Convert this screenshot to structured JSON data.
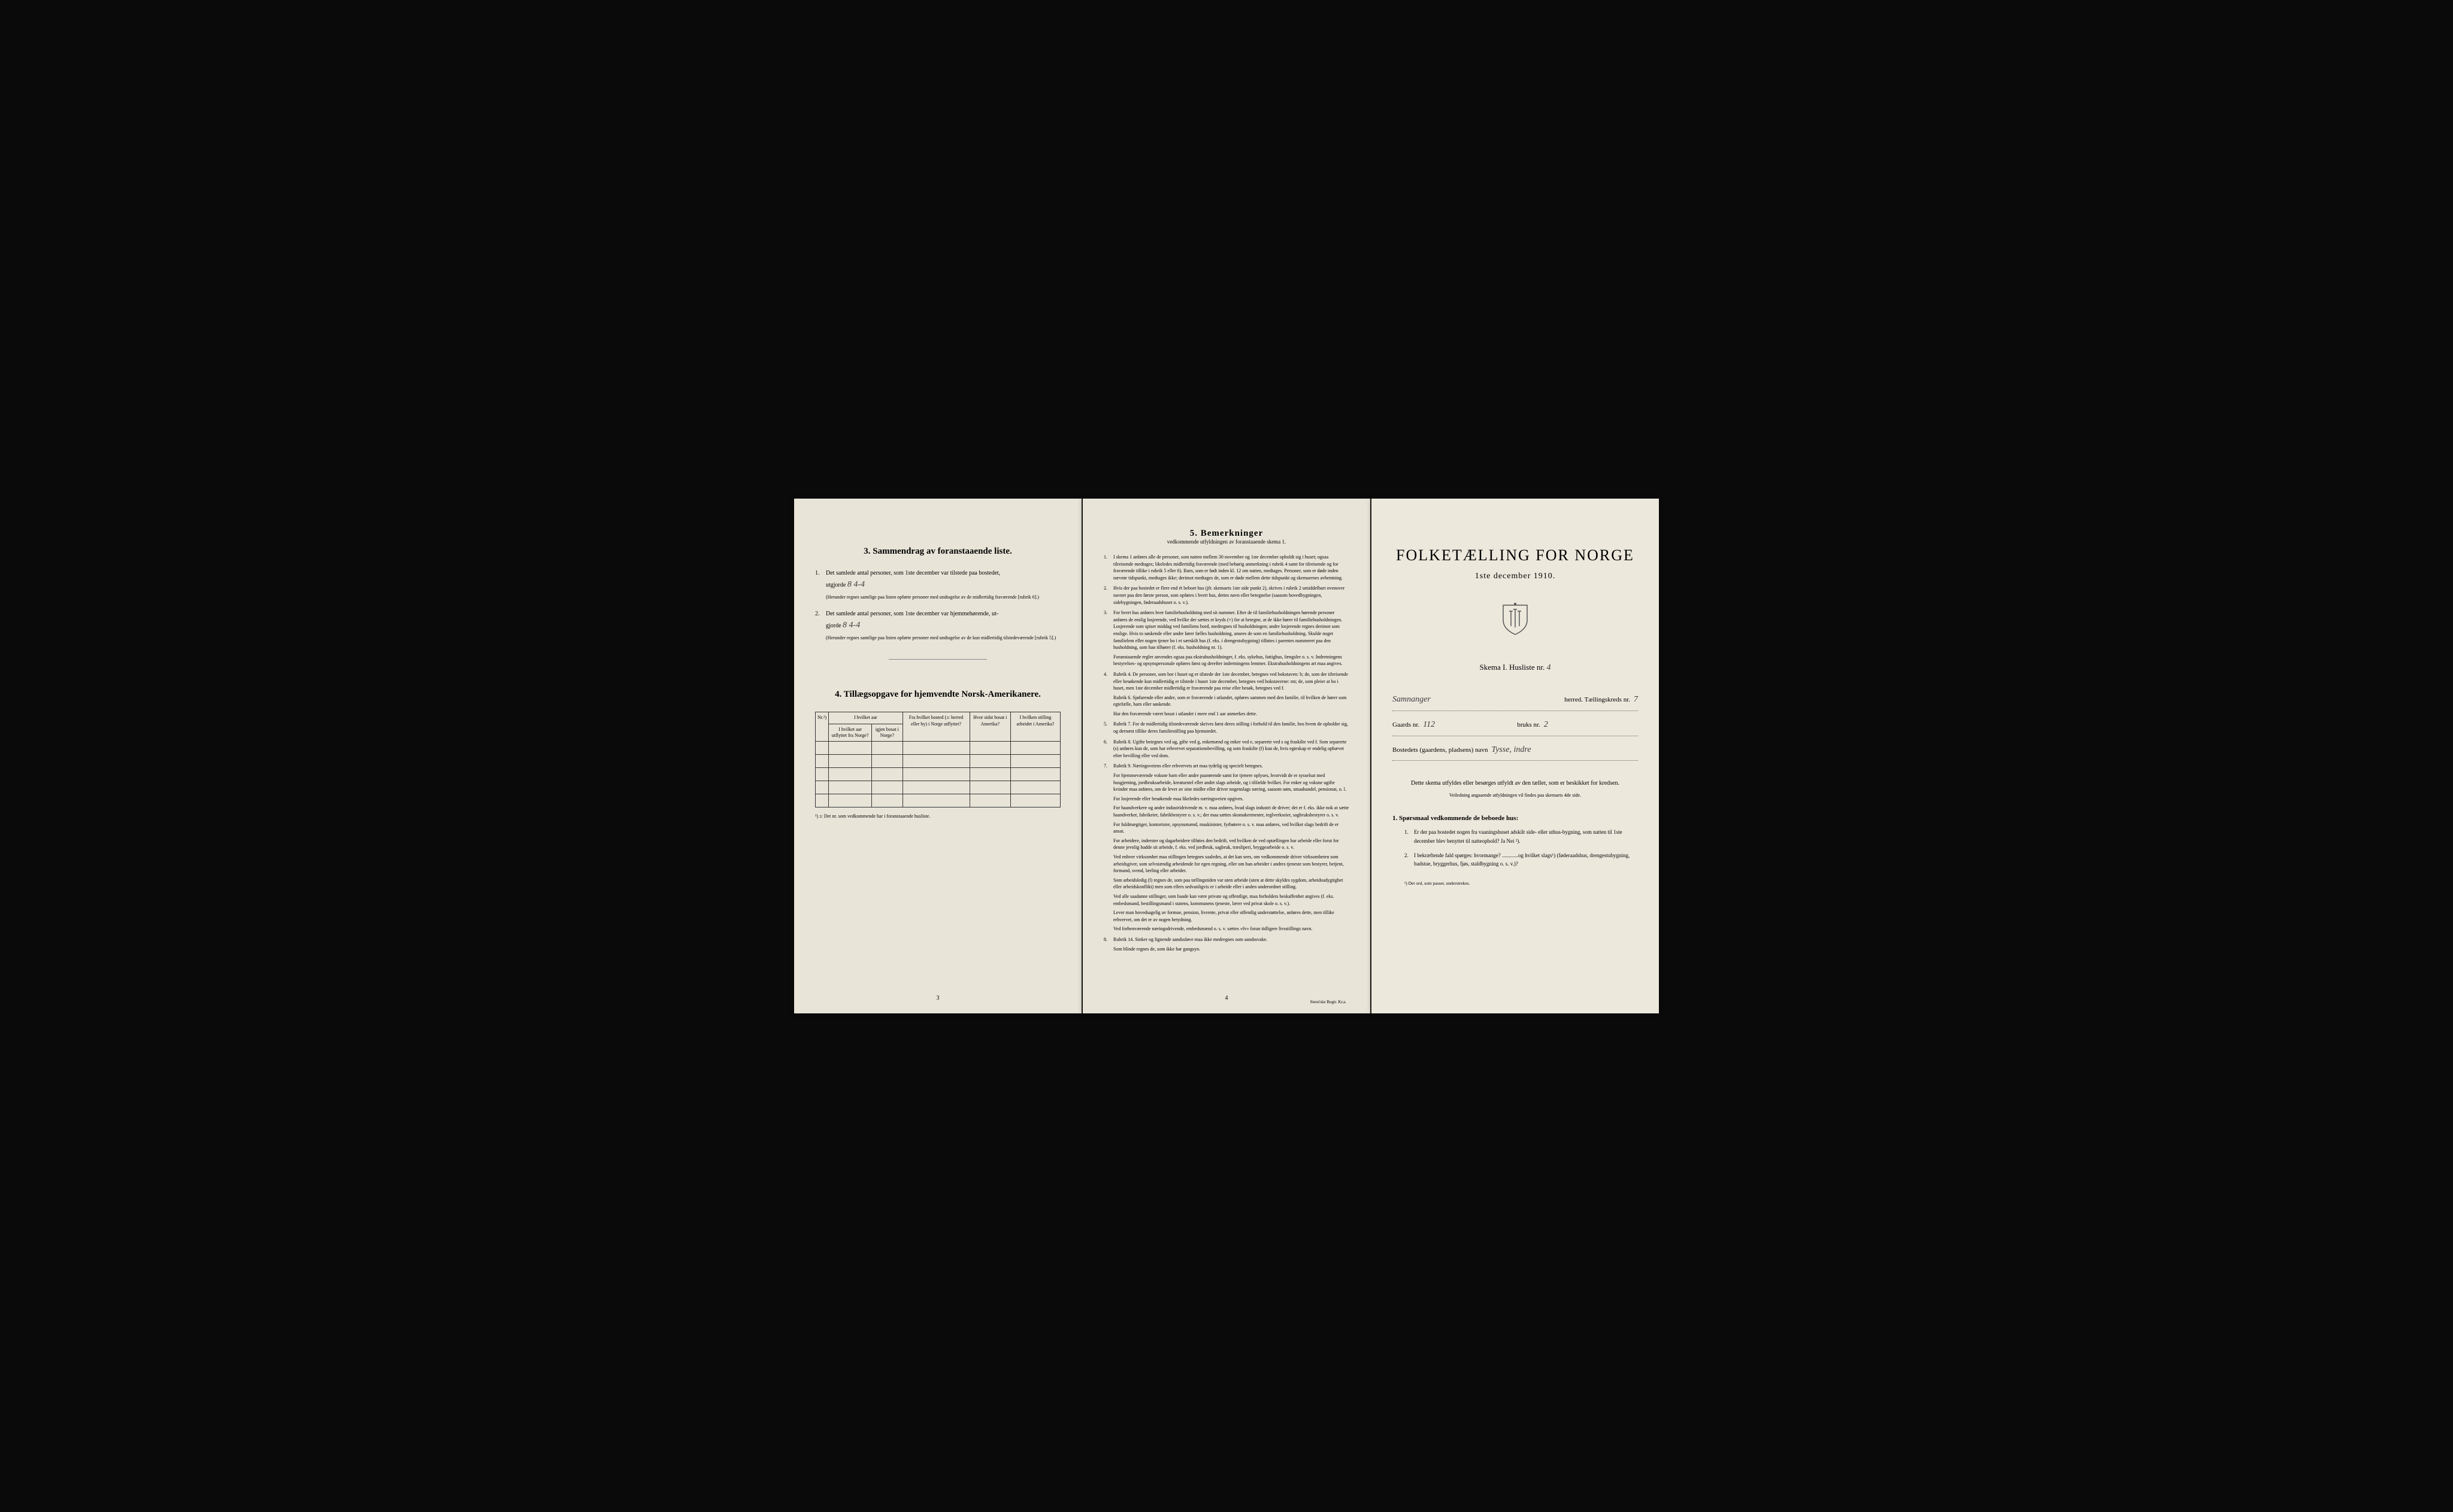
{
  "colors": {
    "page_bg": "#e8e4d8",
    "page_bg_right": "#ece8dc",
    "text": "#1a1a1a",
    "outer_bg": "#0a0a0a",
    "handwriting": "#3a3a3a"
  },
  "page1": {
    "section3_title": "3.  Sammendrag av foranstaaende liste.",
    "item1_pre": "Det samlede antal personer, som 1ste december var tilstede paa bostedet,",
    "item1_word": "utgjorde",
    "item1_val": "8    4-4",
    "item1_note": "(Herunder regnes samtlige paa listen opførte personer med undtagelse av de midlertidig fraværende [rubrik 6].)",
    "item2_pre": "Det samlede antal personer, som 1ste december var hjemmehørende, ut-",
    "item2_word": "gjorde",
    "item2_val": "8    4-4",
    "item2_note": "(Herunder regnes samtlige paa listen opførte personer med undtagelse av de kun midlertidig tilstedeværende [rubrik 5].)",
    "section4_title": "4.  Tillægsopgave for hjemvendte Norsk-Amerikanere.",
    "table_headers": [
      "Nr.¹)",
      "I hvilket aar utflyttet fra Norge?",
      "igjen bosat i Norge?",
      "Fra hvilket bosted (ɔ: herred eller by) i Norge utflyttet?",
      "Hvor sidst bosat i Amerika?",
      "I hvilken stilling arbeidet i Amerika?"
    ],
    "footnote": "¹) ɔ: Det nr. som vedkommende har i foranstaaende husliste.",
    "page_num": "3"
  },
  "page2": {
    "title": "5.  Bemerkninger",
    "subtitle": "vedkommende utfyldningen av foranstaaende skema 1.",
    "items": [
      "I skema 1 anføres alle de personer, som natten mellem 30 november og 1ste december opholdt sig i huset; ogsaa tilreisende medtages; likeledes midlertidig fraværende (med behørig anmerkning i rubrik 4 samt for tilreisende og for fraværende tillike i rubrik 5 eller 6). Barn, som er født inden kl. 12 om natten, medtages. Personer, som er døde inden nævnte tidspunkt, medtages ikke; derimot medtages de, som er døde mellem dette tidspunkt og skemaernes avhentning.",
      "Hvis der paa bostedet er flere end ét beboet hus (jfr. skemaets 1ste side punkt 2), skrives i rubrik 2 umiddelbart ovenover navnet paa den første person, som opføres i hvert hus, dettes navn eller betegnelse (saasom hovedbygningen, sidebygningen, føderaadshuset o. s. v.).",
      "For hvert hus anføres hver familiehusholdning med sit nummer. Efter de til familiehusholdningen hørende personer anføres de enslig losjerende, ved hvilke der sættes et kryds (×) for at betegne, at de ikke hører til familiehusholdningen. Losjerende som spiser middag ved familiens bord, medregnes til husholdningen; andre losjerende regnes derimot som enslige. Hvis to søskende eller andre fører fælles husholdning, ansees de som en familiehusholdning. Skulde noget familielem eller nogen tjener bo i et særskilt hus (f. eks. i drengestubygning) tilføies i parentes nummeret paa den husholdning, som han tilhører (f. eks. husholdning nr. 1).|    Foranstaaende regler anvendes ogsaa paa ekstrahusholdninger, f. eks. sykehus, fattighus, fængsler o. s. v. Indretningens bestyrelses- og opsynspersonale opføres først og derefter indretningens lemmer. Ekstrahusholdningens art maa angives.",
      "Rubrik 4. De personer, som bor i huset og er tilstede der 1ste december, betegnes ved bokstaven: b; de, som der tilreisende eller besøkende kun midlertidig er tilstede i huset 1ste december, betegnes ved bokstaverne: mt; de, som pleier at bo i huset, men 1ste december midlertidig er fraværende paa reise eller besøk, betegnes ved f.|    Rubrik 6. Sjøfarende eller andre, som er fraværende i utlandet, opføres sammen med den familie, til hvilken de hører som egtefælle, barn eller søskende.|    Har den fraværende været bosat i utlandet i mere end 1 aar anmerkes dette.",
      "Rubrik 7. For de midlertidig tilstedeværende skrives først deres stilling i forhold til den familie, hos hvem de opholder sig, og dernæst tillike deres familiestilling paa hjemstedet.",
      "Rubrik 8. Ugifte betegnes ved ug, gifte ved g, enkemænd og enker ved e, separerte ved s og fraskilte ved f. Som separerte (s) anføres kun de, som har erhvervet separationsbevilling, og som fraskilte (f) kun de, hvis egteskap er endelig ophævet efter bevilling eller ved dom.",
      "Rubrik 9. Næringsveiens eller erhvervets art maa tydelig og specielt betegnes.|    For hjemmeværende voksne barn eller andre paarørende samt for tjenere oplyses, hvorvidt de er sysselsat med husgjerning, jordbruksarbeide, kreaturstel eller andet slags arbeide, og i tilfælde hvilket. For enker og voksne ugifte kvinder maa anføres, om de lever av sine midler eller driver nogenslags næring, saasom søm, smaahandel, pensionat, o. l.|    For losjerende eller besøkende maa likeledes næringsveien opgives.|    For haandverkere og andre industridrivende m. v. maa anføres, hvad slags industri de driver; det er f. eks. ikke nok at sætte haandverker, fabrikeier, fabrikbestyrer o. s. v.; der maa sættes skomakermester, teglverkseier, sagbruksbestyrer o. s. v.|    For fuldmægtiger, kontorister, opsynsmænd, maskinister, fyrbøtere o. s. v. maa anføres, ved hvilket slags bedrift de er ansat.|    For arbeidere, inderster og dagarbeidere tilføies den bedrift, ved hvilken de ved optællingen har arbeide eller forut for denne jevnlig hadde sit arbeide, f. eks. ved jordbruk, sagbruk, træsliperi, bryggearbeide o. s. v.|    Ved enhver virksomhet maa stillingen betegnes saaledes, at det kan sees, om vedkommende driver virksomheten som arbeidsgiver, som selvstændig arbeidende for egen regning, eller om han arbeider i andres tjeneste som bestyrer, betjent, formand, svend, lærling eller arbeider.|    Som arbeidsledig (l) regnes de, som paa tællingstiden var uten arbeide (uten at dette skyldes sygdom, arbeidsudygtighet eller arbeidskonflikt) men som ellers sedvanligvis er i arbeide eller i anden underordnet stilling.|    Ved alle saadanne stillinger, som baade kan være private og offentlige, maa forholdets beskaffenhet angives (f. eks. embedsmand, bestillingsmand i statens, kommunens tjeneste, lærer ved privat skole o. s. v.).|    Lever man hovedsagelig av formue, pension, livrente, privat eller offentlig understøttelse, anføres dette, men tillike erhvervet, om det er av nogen betydning.|    Ved forhenværende næringsdrivende, embedsmænd o. s. v. sættes «fv» foran tidligere livsstillings navn.",
      "Rubrik 14. Sinker og lignende aandssløve maa ikke medregnes som aandssvake.|    Som blinde regnes de, som ikke har gangsyn."
    ],
    "page_num": "4",
    "printer": "Steen'ske Bogtr. Kr.a."
  },
  "page3": {
    "title": "FOLKETÆLLING FOR NORGE",
    "date": "1ste december 1910.",
    "skema": "Skema I.  Husliste nr.",
    "husliste_nr": "4",
    "herred_label": "herred.   Tællingskreds nr.",
    "herred_val": "Samnanger",
    "kreds_nr": "7",
    "gaards_label": "Gaards nr.",
    "gaards_nr": "112",
    "bruks_label": "bruks nr.",
    "bruks_nr": "2",
    "bosted_label": "Bostedets (gaardens, pladsens) navn",
    "bosted_val": "Tysse, indre",
    "instructions": "Dette skema utfyldes eller besørges utfyldt av den tæller, som er beskikket for kredsen.",
    "instructions_small": "Veiledning angaaende utfyldningen vil findes paa skemaets 4de side.",
    "q_title": "1. Spørsmaal vedkommende de beboede hus:",
    "q1": "Er der paa bostedet nogen fra vaaningshuset adskilt side- eller uthus-bygning, som natten til 1ste december blev benyttet til natteophold?   Ja   Nei ²).",
    "q2": "I bekræftende fald spørges: hvormange? ............og hvilket slags¹) (føderaadshus, drengestubygning, badstue, bryggerhus, fjøs, staldbygning o. s. v.)?",
    "foot": "²) Det ord, som passer, understrekes."
  }
}
